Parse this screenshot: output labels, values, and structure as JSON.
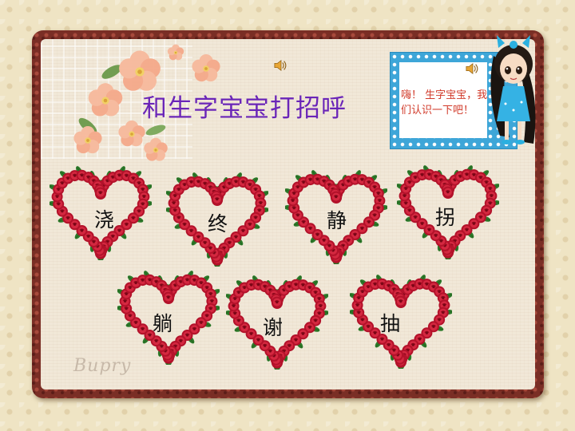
{
  "title": "和生字宝宝打招呼",
  "bubble": {
    "text": "嗨！ 生字宝宝，我们认识一下吧！"
  },
  "hearts": [
    {
      "char": "浇"
    },
    {
      "char": "终"
    },
    {
      "char": "静"
    },
    {
      "char": "拐"
    },
    {
      "char": "躺"
    },
    {
      "char": "谢"
    },
    {
      "char": "抽"
    }
  ],
  "signature": "Bupry",
  "icons": {
    "sound": "speaker-icon",
    "decoration": "flower-cluster",
    "character": "doll-girl"
  },
  "colors": {
    "title": "#6a25b8",
    "bubble_text": "#d13a2a",
    "heart_rose": "#c0182e",
    "leaf": "#2d7a2a",
    "frame": "#7a2e25",
    "bubble_border": "#3ea6d8"
  }
}
